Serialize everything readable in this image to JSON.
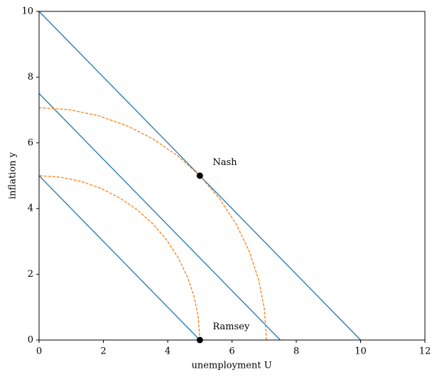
{
  "chart_data": {
    "type": "line",
    "xlabel": "unemployment U",
    "ylabel": "inflation y",
    "xlim": [
      0,
      12
    ],
    "ylim": [
      0,
      10
    ],
    "xticks": [
      0,
      2,
      4,
      6,
      8,
      10,
      12
    ],
    "yticks": [
      0,
      2,
      4,
      6,
      8,
      10
    ],
    "series": [
      {
        "type": "line",
        "color": "#1f77b4",
        "x": [
          0,
          10
        ],
        "values": [
          10,
          0
        ]
      },
      {
        "type": "line",
        "color": "#1f77b4",
        "x": [
          0,
          7.5
        ],
        "values": [
          7.5,
          0
        ]
      },
      {
        "type": "line",
        "color": "#1f77b4",
        "x": [
          0,
          5
        ],
        "values": [
          5,
          0
        ]
      },
      {
        "type": "line",
        "color": "#ff7f0e",
        "dashed": true,
        "x": [
          5,
          4.957,
          4.83,
          4.619,
          4.33,
          3.967,
          3.536,
          3.044,
          2.5,
          1.913,
          1.294,
          0.653,
          0
        ],
        "values": [
          0,
          0.653,
          1.294,
          1.913,
          2.5,
          3.044,
          3.536,
          3.967,
          4.33,
          4.619,
          4.83,
          4.957,
          5
        ]
      },
      {
        "type": "line",
        "color": "#ff7f0e",
        "dashed": true,
        "x": [
          7.071,
          7.011,
          6.83,
          6.533,
          6.124,
          5.61,
          5.0,
          4.305,
          3.536,
          2.706,
          1.83,
          0.923,
          0
        ],
        "values": [
          0,
          0.923,
          1.83,
          2.706,
          3.536,
          4.305,
          5.0,
          5.61,
          6.124,
          6.533,
          6.83,
          7.011,
          7.071
        ]
      },
      {
        "type": "scatter",
        "color": "#000000",
        "x": [
          5,
          5
        ],
        "values": [
          5,
          0
        ]
      }
    ],
    "annotations": [
      {
        "text": "Nash",
        "x": 5.4,
        "y": 5.4
      },
      {
        "text": "Ramsey",
        "x": 5.4,
        "y": 0.4
      }
    ]
  }
}
